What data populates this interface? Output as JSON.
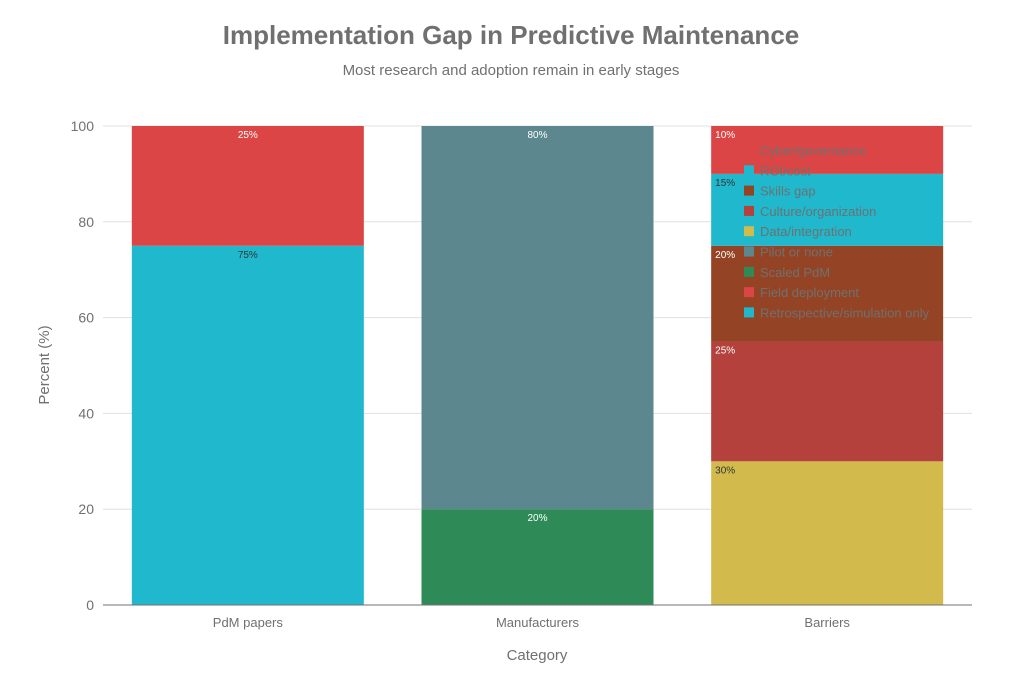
{
  "chart_data": {
    "type": "bar",
    "stacked": true,
    "title": "Implementation Gap in Predictive Maintenance",
    "subtitle": "Most research and adoption remain in early stages",
    "xlabel": "Category",
    "ylabel": "Percent (%)",
    "ylim": [
      0,
      100
    ],
    "yticks": [
      0,
      20,
      40,
      60,
      80,
      100
    ],
    "categories": [
      "PdM papers",
      "Manufacturers",
      "Barriers"
    ],
    "legend_position": "top-right (inside plot)",
    "series": [
      {
        "name": "Retrospective/simulation only",
        "color": "#1FB8CD",
        "values": [
          75,
          0,
          0
        ],
        "labels": [
          "75%",
          "",
          ""
        ],
        "label_color": "#333333"
      },
      {
        "name": "Field deployment",
        "color": "#DB4545",
        "values": [
          25,
          0,
          0
        ],
        "labels": [
          "25%",
          "",
          ""
        ],
        "label_color": "#ffffff"
      },
      {
        "name": "Scaled PdM",
        "color": "#2E8B57",
        "values": [
          0,
          20,
          0
        ],
        "labels": [
          "",
          "20%",
          ""
        ],
        "label_color": "#ffffff"
      },
      {
        "name": "Pilot or none",
        "color": "#5D878F",
        "values": [
          0,
          80,
          0
        ],
        "labels": [
          "",
          "80%",
          ""
        ],
        "label_color": "#ffffff"
      },
      {
        "name": "Data/integration",
        "color": "#D2BA4C",
        "values": [
          0,
          0,
          30
        ],
        "labels": [
          "",
          "",
          "30%"
        ],
        "label_color": "#333333"
      },
      {
        "name": "Culture/organization",
        "color": "#B4413C",
        "values": [
          0,
          0,
          25
        ],
        "labels": [
          "",
          "",
          "25%"
        ],
        "label_color": "#ffffff"
      },
      {
        "name": "Skills gap",
        "color": "#944454",
        "values": [
          0,
          0,
          20
        ],
        "labels": [
          "",
          "",
          "20%"
        ],
        "label_color": "#ffffff"
      },
      {
        "name": "ROI/cost",
        "color": "#1FB8CD",
        "values": [
          0,
          0,
          15
        ],
        "labels": [
          "",
          "",
          "15%"
        ],
        "label_color": "#333333"
      },
      {
        "name": "Cyber/governance",
        "color": "#DB4545",
        "values": [
          0,
          0,
          10
        ],
        "labels": [
          "",
          "",
          "10%"
        ],
        "label_color": "#ffffff"
      }
    ]
  }
}
